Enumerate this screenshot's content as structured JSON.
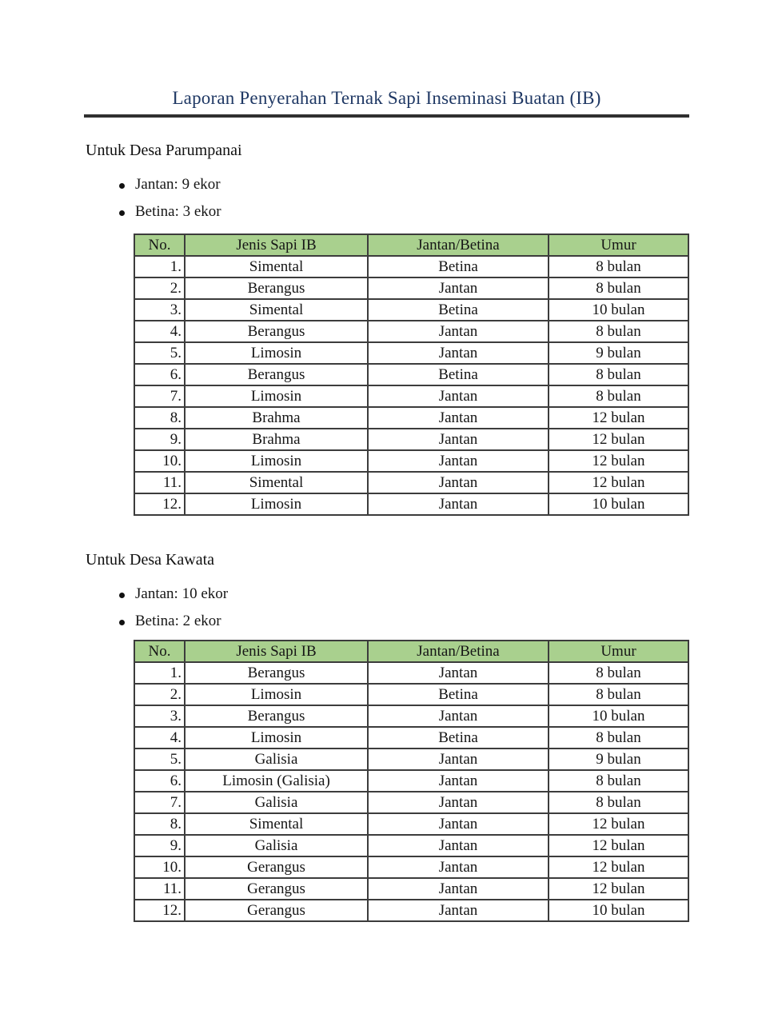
{
  "title": "Laporan Penyerahan Ternak Sapi Inseminasi Buatan (IB)",
  "colors": {
    "title_text": "#1f3864",
    "table_header_bg": "#a9d08e",
    "table_border": "#3c3c3c",
    "body_text": "#161616"
  },
  "table_headers": [
    "No.",
    "Jenis Sapi IB",
    "Jantan/Betina",
    "Umur"
  ],
  "sections": [
    {
      "heading": "Untuk Desa Parumpanai",
      "bullets": [
        "Jantan: 9 ekor",
        "Betina: 3 ekor"
      ],
      "rows": [
        [
          "1.",
          "Simental",
          "Betina",
          "8 bulan"
        ],
        [
          "2.",
          "Berangus",
          "Jantan",
          "8 bulan"
        ],
        [
          "3.",
          "Simental",
          "Betina",
          "10 bulan"
        ],
        [
          "4.",
          "Berangus",
          "Jantan",
          "8 bulan"
        ],
        [
          "5.",
          "Limosin",
          "Jantan",
          "9 bulan"
        ],
        [
          "6.",
          "Berangus",
          "Betina",
          "8 bulan"
        ],
        [
          "7.",
          "Limosin",
          "Jantan",
          "8 bulan"
        ],
        [
          "8.",
          "Brahma",
          "Jantan",
          "12 bulan"
        ],
        [
          "9.",
          "Brahma",
          "Jantan",
          "12 bulan"
        ],
        [
          "10.",
          "Limosin",
          "Jantan",
          "12 bulan"
        ],
        [
          "11.",
          "Simental",
          "Jantan",
          "12 bulan"
        ],
        [
          "12.",
          "Limosin",
          "Jantan",
          "10 bulan"
        ]
      ]
    },
    {
      "heading": "Untuk Desa Kawata",
      "bullets": [
        "Jantan: 10 ekor",
        "Betina: 2 ekor"
      ],
      "rows": [
        [
          "1.",
          "Berangus",
          "Jantan",
          "8 bulan"
        ],
        [
          "2.",
          "Limosin",
          "Betina",
          "8 bulan"
        ],
        [
          "3.",
          "Berangus",
          "Jantan",
          "10 bulan"
        ],
        [
          "4.",
          "Limosin",
          "Betina",
          "8 bulan"
        ],
        [
          "5.",
          "Galisia",
          "Jantan",
          "9 bulan"
        ],
        [
          "6.",
          "Limosin (Galisia)",
          "Jantan",
          "8 bulan"
        ],
        [
          "7.",
          "Galisia",
          "Jantan",
          "8 bulan"
        ],
        [
          "8.",
          "Simental",
          "Jantan",
          "12 bulan"
        ],
        [
          "9.",
          "Galisia",
          "Jantan",
          "12 bulan"
        ],
        [
          "10.",
          "Gerangus",
          "Jantan",
          "12 bulan"
        ],
        [
          "11.",
          "Gerangus",
          "Jantan",
          "12 bulan"
        ],
        [
          "12.",
          "Gerangus",
          "Jantan",
          "10 bulan"
        ]
      ]
    }
  ]
}
